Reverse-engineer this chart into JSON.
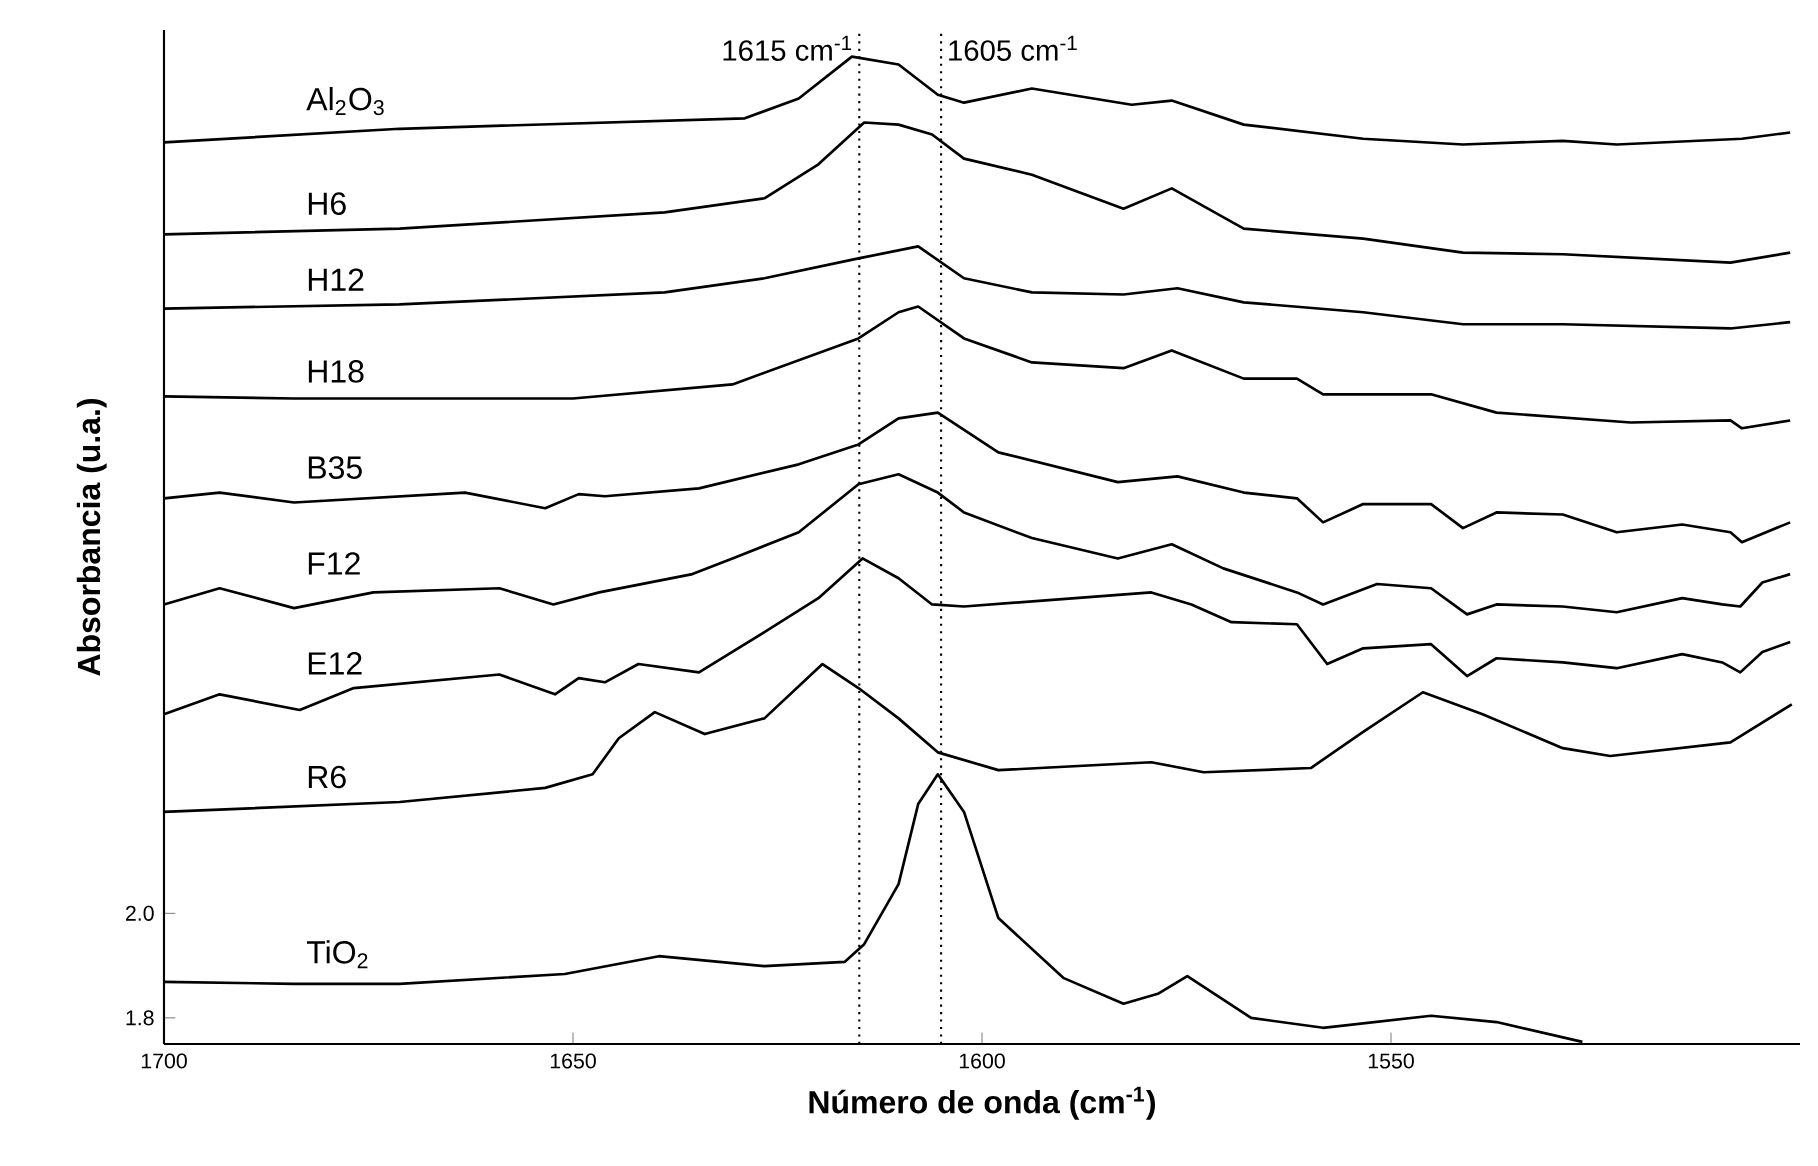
{
  "chart_data": {
    "type": "line",
    "xlabel": "Número de onda (cm$^{-1}$)",
    "ylabel": "Absorbancia (u.a.)",
    "xlim": [
      1700,
      1500
    ],
    "xticks": [
      1700,
      1650,
      1600,
      1550
    ],
    "ylim": [
      1.75,
      3.69
    ],
    "yticks": [
      1.8,
      {
        "value": 2.0,
        "label": "2.0"
      }
    ],
    "line_style": "solid",
    "ref_lines": [
      {
        "axis": "x",
        "value": 1615,
        "label": "1615 cm$^{-1}$",
        "line_style": "dotted",
        "color": "#000000"
      },
      {
        "axis": "x",
        "value": 1605,
        "label": "1605 cm$^{-1}$",
        "line_style": "dotted",
        "color": "#000000"
      }
    ],
    "series": [
      {
        "name": "Al$_{2}$O$_{3}$",
        "color": "#000000",
        "x": [
          1700,
          1671.2,
          1629.0,
          1622.4,
          1615.9,
          1610.2,
          1605.4,
          1602.2,
          1593.9,
          1581.7,
          1576.8,
          1568.0,
          1553.4,
          1541.2,
          1529.0,
          1522.4,
          1507.1,
          1501.2
        ],
        "values": [
          3.475,
          3.501,
          3.521,
          3.559,
          3.639,
          3.624,
          3.566,
          3.551,
          3.578,
          3.547,
          3.555,
          3.509,
          3.482,
          3.471,
          3.478,
          3.471,
          3.482,
          3.494
        ]
      },
      {
        "name": "H6",
        "color": "#000000",
        "x": [
          1700,
          1671.2,
          1638.8,
          1626.6,
          1620.0,
          1614.4,
          1610.2,
          1606.1,
          1602.2,
          1593.9,
          1582.7,
          1576.8,
          1568.0,
          1553.4,
          1541.2,
          1529.0,
          1508.5,
          1501.2
        ],
        "values": [
          3.299,
          3.31,
          3.341,
          3.368,
          3.433,
          3.513,
          3.509,
          3.49,
          3.444,
          3.413,
          3.348,
          3.387,
          3.31,
          3.291,
          3.264,
          3.261,
          3.245,
          3.264
        ]
      },
      {
        "name": "H12",
        "color": "#000000",
        "x": [
          1700,
          1671.2,
          1638.8,
          1626.6,
          1615.1,
          1607.8,
          1602.2,
          1593.9,
          1582.7,
          1576.1,
          1568.0,
          1553.4,
          1541.2,
          1529.0,
          1508.5,
          1501.2
        ],
        "values": [
          3.157,
          3.165,
          3.188,
          3.215,
          3.253,
          3.276,
          3.215,
          3.188,
          3.184,
          3.196,
          3.169,
          3.15,
          3.127,
          3.127,
          3.119,
          3.131
        ]
      },
      {
        "name": "H18",
        "color": "#000000",
        "x": [
          1700,
          1684.1,
          1650.0,
          1630.5,
          1615.1,
          1610.2,
          1607.8,
          1602.2,
          1593.9,
          1582.7,
          1576.8,
          1568.0,
          1561.5,
          1558.3,
          1545.1,
          1537.1,
          1520.7,
          1508.5,
          1507.1,
          1501.2
        ],
        "values": [
          2.989,
          2.985,
          2.985,
          3.012,
          3.1,
          3.15,
          3.161,
          3.1,
          3.054,
          3.043,
          3.077,
          3.023,
          3.023,
          2.993,
          2.993,
          2.958,
          2.939,
          2.943,
          2.928,
          2.943
        ]
      },
      {
        "name": "B35",
        "color": "#000000",
        "x": [
          1700,
          1693.2,
          1684.1,
          1663.2,
          1653.4,
          1649.3,
          1646.1,
          1634.6,
          1622.4,
          1615.1,
          1610.2,
          1605.4,
          1598.0,
          1583.4,
          1576.1,
          1568.0,
          1561.5,
          1558.3,
          1553.4,
          1545.1,
          1541.2,
          1537.1,
          1529.0,
          1522.4,
          1514.4,
          1508.5,
          1507.1,
          1501.2
        ],
        "values": [
          2.794,
          2.805,
          2.786,
          2.805,
          2.775,
          2.802,
          2.798,
          2.813,
          2.859,
          2.897,
          2.947,
          2.958,
          2.882,
          2.825,
          2.836,
          2.805,
          2.794,
          2.748,
          2.783,
          2.783,
          2.737,
          2.767,
          2.763,
          2.729,
          2.744,
          2.729,
          2.71,
          2.748
        ]
      },
      {
        "name": "F12",
        "color": "#000000",
        "x": [
          1700,
          1693.2,
          1684.1,
          1674.4,
          1659.0,
          1652.4,
          1646.8,
          1635.4,
          1630.5,
          1622.4,
          1615.1,
          1610.2,
          1605.4,
          1602.2,
          1593.9,
          1583.4,
          1576.8,
          1570.5,
          1561.5,
          1558.3,
          1551.7,
          1545.1,
          1540.7,
          1537.1,
          1529.0,
          1522.4,
          1514.4,
          1509.5,
          1507.3,
          1504.6,
          1501.2
        ],
        "values": [
          2.591,
          2.622,
          2.584,
          2.614,
          2.622,
          2.591,
          2.614,
          2.649,
          2.679,
          2.729,
          2.821,
          2.84,
          2.805,
          2.767,
          2.718,
          2.679,
          2.706,
          2.66,
          2.614,
          2.591,
          2.63,
          2.622,
          2.572,
          2.591,
          2.587,
          2.576,
          2.603,
          2.591,
          2.587,
          2.633,
          2.649
        ]
      },
      {
        "name": "E12",
        "color": "#000000",
        "x": [
          1700,
          1693.2,
          1683.4,
          1676.8,
          1659.0,
          1652.2,
          1649.3,
          1646.1,
          1642.0,
          1634.6,
          1626.6,
          1620.0,
          1614.6,
          1610.2,
          1606.1,
          1602.2,
          1579.3,
          1574.4,
          1569.5,
          1561.5,
          1557.8,
          1553.4,
          1545.1,
          1540.7,
          1537.1,
          1529.0,
          1522.4,
          1514.4,
          1509.5,
          1507.3,
          1504.6,
          1501.2
        ],
        "values": [
          2.381,
          2.419,
          2.389,
          2.431,
          2.457,
          2.419,
          2.45,
          2.442,
          2.477,
          2.461,
          2.538,
          2.603,
          2.679,
          2.641,
          2.591,
          2.587,
          2.614,
          2.591,
          2.557,
          2.553,
          2.477,
          2.507,
          2.515,
          2.454,
          2.488,
          2.48,
          2.469,
          2.496,
          2.48,
          2.461,
          2.5,
          2.519
        ]
      },
      {
        "name": "R6",
        "color": "#000000",
        "x": [
          1700,
          1671.2,
          1653.4,
          1647.6,
          1644.4,
          1640.0,
          1633.9,
          1626.6,
          1619.5,
          1615.1,
          1610.2,
          1605.4,
          1598.0,
          1579.3,
          1572.9,
          1559.8,
          1553.4,
          1546.1,
          1538.8,
          1529.0,
          1523.2,
          1508.5,
          1501.0
        ],
        "values": [
          2.194,
          2.213,
          2.24,
          2.266,
          2.335,
          2.385,
          2.343,
          2.373,
          2.477,
          2.431,
          2.373,
          2.308,
          2.274,
          2.289,
          2.27,
          2.278,
          2.347,
          2.423,
          2.381,
          2.316,
          2.301,
          2.327,
          2.4
        ]
      },
      {
        "name": "TiO$_{2}$",
        "color": "#000000",
        "x": [
          1700,
          1684.1,
          1671.2,
          1651.0,
          1639.5,
          1626.6,
          1616.8,
          1614.4,
          1610.2,
          1607.8,
          1605.4,
          1602.2,
          1598.0,
          1590.0,
          1582.7,
          1578.5,
          1574.9,
          1567.1,
          1558.3,
          1545.1,
          1537.1,
          1526.6
        ],
        "values": [
          1.869,
          1.865,
          1.865,
          1.884,
          1.918,
          1.899,
          1.907,
          1.941,
          2.056,
          2.209,
          2.266,
          2.194,
          1.991,
          1.876,
          1.827,
          1.846,
          1.88,
          1.8,
          1.781,
          1.804,
          1.792,
          1.754
        ]
      }
    ]
  }
}
